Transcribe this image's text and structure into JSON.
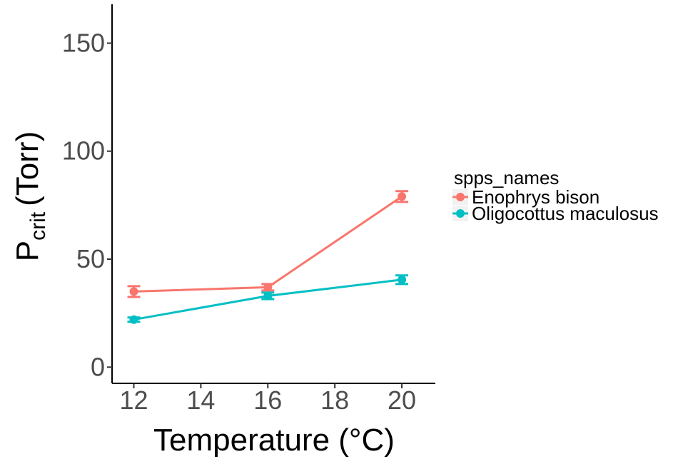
{
  "chart_data": {
    "type": "line",
    "xlabel": "Temperature (°C)",
    "ylabel_main": "P",
    "ylabel_sub": "crit",
    "ylabel_unit": "(Torr)",
    "x_ticks": [
      12,
      14,
      16,
      18,
      20
    ],
    "y_ticks": [
      0,
      50,
      100,
      150
    ],
    "xlim": [
      11.35,
      21.0
    ],
    "ylim": [
      -7.5,
      168
    ],
    "grid": false,
    "legend": {
      "title": "spps_names",
      "position": "right"
    },
    "series": [
      {
        "name": "Enophrys bison",
        "color": "#F8766D",
        "x": [
          12,
          16,
          20
        ],
        "y": [
          35,
          37,
          79
        ],
        "error": [
          2.5,
          1.5,
          2.5
        ]
      },
      {
        "name": "Oligocottus maculosus",
        "color": "#00BFC4",
        "x": [
          12,
          16,
          20
        ],
        "y": [
          22,
          33,
          40.5
        ],
        "error": [
          1.0,
          1.5,
          2.0
        ]
      }
    ]
  }
}
